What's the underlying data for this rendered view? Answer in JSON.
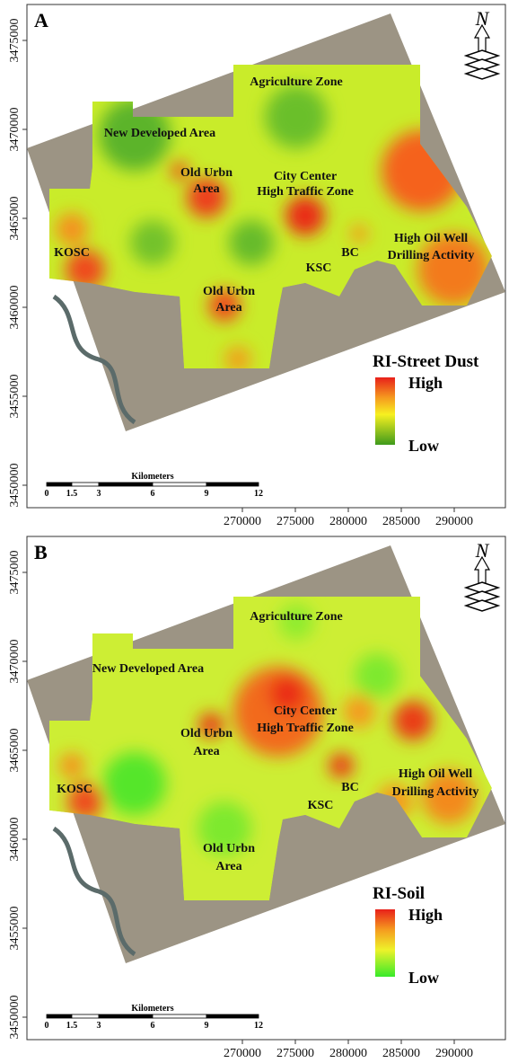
{
  "panels": [
    {
      "letter": "A",
      "labels": [
        "Agriculture Zone",
        "New Developed Area",
        "Old Urbn",
        "Area",
        "City Center",
        "High Traffic Zone",
        "KOSC",
        "BC",
        "KSC",
        "High Oil Well",
        "Drilling Activity",
        "Old Urbn",
        "Area"
      ],
      "legend": {
        "title": "RI-Street Dust",
        "high": "High",
        "low": "Low"
      },
      "scale_bar": {
        "title": "Kilometers",
        "labels": [
          "0",
          "1.5",
          "3",
          "6",
          "9",
          "12"
        ]
      },
      "north": "N",
      "xticks": [
        270000,
        275000,
        280000,
        285000,
        290000
      ],
      "yticks": [
        3450000,
        3455000,
        3460000,
        3465000,
        3470000,
        3475000
      ]
    },
    {
      "letter": "B",
      "labels": [
        "Agriculture Zone",
        "New Developed Area",
        "City Center",
        "High Traffic Zone",
        "Old Urbn",
        "Area",
        "KOSC",
        "BC",
        "KSC",
        "High Oil Well",
        "Drilling Activity",
        "Old Urbn",
        "Area"
      ],
      "legend": {
        "title": "RI-Soil",
        "high": "High",
        "low": "Low"
      },
      "scale_bar": {
        "title": "Kilometers",
        "labels": [
          "0",
          "1.5",
          "3",
          "6",
          "9",
          "12"
        ]
      },
      "north": "N",
      "xticks": [
        270000,
        275000,
        280000,
        285000,
        290000
      ],
      "yticks": [
        3450000,
        3455000,
        3460000,
        3465000,
        3470000,
        3475000
      ]
    }
  ]
}
